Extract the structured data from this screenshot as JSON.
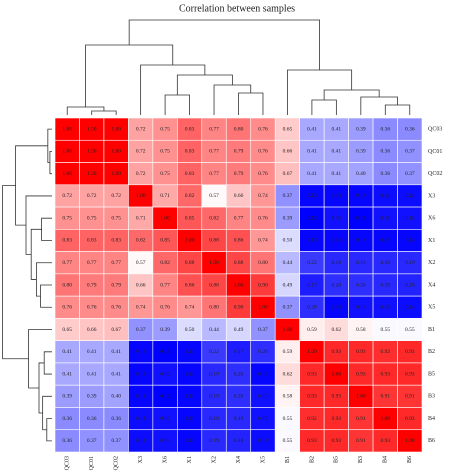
{
  "chart_data": {
    "type": "heatmap",
    "title": "Correlation between samples",
    "rows": [
      "QC03",
      "QC01",
      "QC02",
      "X3",
      "X6",
      "X1",
      "X2",
      "X4",
      "X5",
      "B1",
      "B2",
      "B5",
      "B3",
      "B4",
      "B6"
    ],
    "columns": [
      "QC03",
      "QC01",
      "QC02",
      "X3",
      "X6",
      "X1",
      "X2",
      "X4",
      "X5",
      "B1",
      "B2",
      "B5",
      "B3",
      "B4",
      "B6"
    ],
    "values": [
      [
        1.0,
        1.0,
        1.0,
        0.72,
        0.75,
        0.83,
        0.77,
        0.8,
        0.76,
        0.65,
        0.41,
        0.41,
        0.39,
        0.36,
        0.36
      ],
      [
        1.0,
        1.0,
        1.0,
        0.72,
        0.75,
        0.83,
        0.77,
        0.79,
        0.76,
        0.66,
        0.41,
        0.41,
        0.39,
        0.36,
        0.37
      ],
      [
        1.0,
        1.0,
        1.0,
        0.72,
        0.75,
        0.83,
        0.77,
        0.79,
        0.76,
        0.67,
        0.41,
        0.41,
        0.4,
        0.36,
        0.37
      ],
      [
        0.72,
        0.72,
        0.72,
        1.0,
        0.71,
        0.82,
        0.57,
        0.66,
        0.74,
        0.37,
        0.13,
        0.13,
        0.13,
        0.14,
        0.14
      ],
      [
        0.75,
        0.75,
        0.75,
        0.71,
        1.0,
        0.85,
        0.82,
        0.77,
        0.76,
        0.39,
        0.12,
        0.15,
        0.12,
        0.15,
        0.15
      ],
      [
        0.83,
        0.83,
        0.83,
        0.82,
        0.85,
        1.0,
        0.88,
        0.86,
        0.74,
        0.5,
        0.13,
        0.13,
        0.13,
        0.13,
        0.13
      ],
      [
        0.77,
        0.77,
        0.77,
        0.57,
        0.82,
        0.88,
        1.0,
        0.88,
        0.8,
        0.44,
        0.22,
        0.19,
        0.19,
        0.19,
        0.19
      ],
      [
        0.8,
        0.79,
        0.79,
        0.66,
        0.77,
        0.86,
        0.88,
        1.0,
        0.9,
        0.49,
        0.17,
        0.2,
        0.2,
        0.19,
        0.18
      ],
      [
        0.76,
        0.76,
        0.76,
        0.74,
        0.76,
        0.74,
        0.8,
        0.9,
        1.0,
        0.37,
        0.2,
        0.13,
        0.15,
        0.15,
        0.14
      ],
      [
        0.65,
        0.66,
        0.67,
        0.37,
        0.39,
        0.5,
        0.44,
        0.49,
        0.37,
        1.0,
        0.59,
        0.62,
        0.58,
        0.55,
        0.55
      ],
      [
        0.41,
        0.41,
        0.41,
        0.13,
        0.12,
        0.13,
        0.22,
        0.17,
        0.2,
        0.59,
        1.0,
        0.93,
        0.93,
        0.92,
        0.93
      ],
      [
        0.41,
        0.41,
        0.41,
        0.13,
        0.15,
        0.13,
        0.19,
        0.2,
        0.13,
        0.62,
        0.93,
        1.0,
        0.93,
        0.93,
        0.93
      ],
      [
        0.39,
        0.39,
        0.4,
        0.13,
        0.12,
        0.13,
        0.19,
        0.2,
        0.15,
        0.58,
        0.93,
        0.93,
        1.0,
        0.91,
        0.91
      ],
      [
        0.36,
        0.36,
        0.36,
        0.14,
        0.15,
        0.13,
        0.19,
        0.19,
        0.15,
        0.55,
        0.92,
        0.93,
        0.91,
        1.0,
        0.93
      ],
      [
        0.36,
        0.37,
        0.37,
        0.14,
        0.15,
        0.13,
        0.19,
        0.18,
        0.14,
        0.55,
        0.93,
        0.93,
        0.91,
        0.93,
        1.0
      ]
    ],
    "colors": {
      "low": "#0000ff",
      "mid": "#ffffff",
      "high": "#ff0000"
    }
  }
}
